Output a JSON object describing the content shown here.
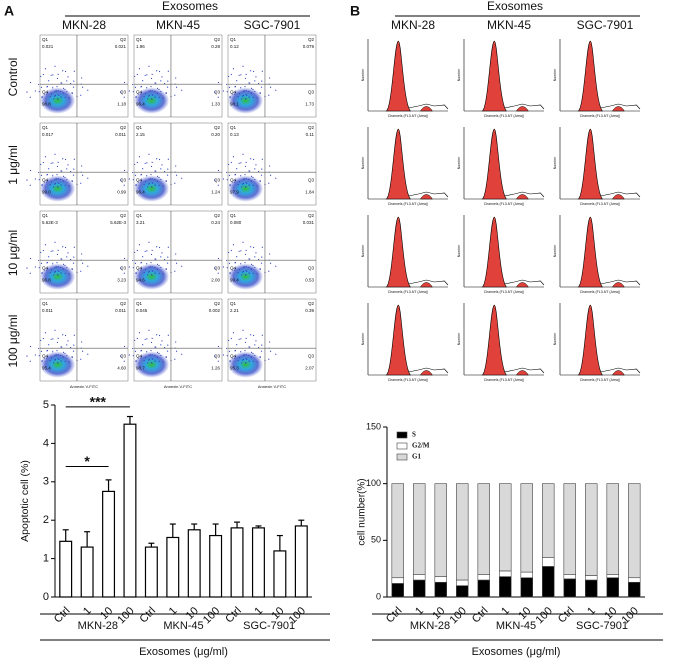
{
  "panel_a": {
    "letter": "A",
    "header": "Exosomes",
    "columns": [
      "MKN-28",
      "MKN-45",
      "SGC-7901"
    ],
    "rows": [
      "Control",
      "1 μg/ml",
      "10 μg/ml",
      "100 μg/ml"
    ],
    "quadrants": [
      "Q1",
      "Q2",
      "Q3",
      "Q4"
    ],
    "x_axis_label": "Annexin V-FITC",
    "plots": [
      [
        [
          "0.021",
          "0.021",
          "1.18",
          "98.8"
        ],
        [
          "1.96",
          "0.28",
          "1.33",
          "96.4"
        ],
        [
          "0.12",
          "0.079",
          "1.73",
          "98.1"
        ]
      ],
      [
        [
          "0.017",
          "0.011",
          "0.99",
          "99.0"
        ],
        [
          "2.15",
          "0.20",
          "1.24",
          "96.4"
        ],
        [
          "0.13",
          "0.11",
          "1.84",
          "97.9"
        ]
      ],
      [
        [
          "5.62E-3",
          "5.62E-3",
          "3.23",
          "96.8"
        ],
        [
          "3.21",
          "0.24",
          "2.00",
          "94.6"
        ],
        [
          "0.080",
          "0.031",
          "0.53",
          "99.4"
        ]
      ],
      [
        [
          "0.011",
          "0.011",
          "4.60",
          "95.4"
        ],
        [
          "0.045",
          "0.002",
          "1.26",
          "98.7"
        ],
        [
          "2.21",
          "0.39",
          "2.07",
          "95.3"
        ]
      ]
    ]
  },
  "panel_b": {
    "letter": "B",
    "header": "Exosomes",
    "columns": [
      "MKN-28",
      "MKN-45",
      "SGC-7901"
    ],
    "x_axis_label": "Channels (FL3-NT (Area))",
    "y_axis_label": "Number"
  },
  "chart_data": [
    {
      "type": "bar",
      "ylabel": "Apoptotic cell (%)",
      "xlabel": "Exosomes (μg/ml)",
      "categories": [
        "Ctrl",
        "1",
        "10",
        "100",
        "Ctrl",
        "1",
        "10",
        "100",
        "Ctrl",
        "1",
        "10",
        "100"
      ],
      "groups": [
        "MKN-28",
        "MKN-45",
        "SGC-7901"
      ],
      "values": [
        1.45,
        1.3,
        2.75,
        4.5,
        1.3,
        1.55,
        1.75,
        1.6,
        1.8,
        1.8,
        1.2,
        1.85
      ],
      "errors": [
        0.3,
        0.4,
        0.3,
        0.2,
        0.1,
        0.35,
        0.15,
        0.3,
        0.15,
        0.05,
        0.4,
        0.15
      ],
      "color": "#ffffff",
      "annotations": [
        "*",
        "***"
      ],
      "ylim": [
        0,
        5
      ],
      "yticks": [
        0,
        1,
        2,
        3,
        4,
        5
      ]
    },
    {
      "type": "stacked_bar",
      "ylabel": "cell number(%)",
      "xlabel": "Exosomes (μg/ml)",
      "categories": [
        "Ctrl",
        "1",
        "10",
        "100",
        "Ctrl",
        "1",
        "10",
        "100",
        "Ctrl",
        "1",
        "10",
        "100"
      ],
      "groups": [
        "MKN-28",
        "MKN-45",
        "SGC-7901"
      ],
      "series": [
        {
          "name": "S",
          "color": "#000000",
          "values": [
            12,
            15,
            13,
            10,
            15,
            18,
            17,
            27,
            16,
            15,
            17,
            13
          ]
        },
        {
          "name": "G2/M",
          "color": "#ffffff",
          "values": [
            5,
            5,
            5,
            5,
            5,
            5,
            5,
            8,
            4,
            4,
            3,
            4
          ]
        },
        {
          "name": "G1",
          "color": "#d9d9d9",
          "values": [
            83,
            80,
            82,
            85,
            80,
            77,
            78,
            65,
            80,
            81,
            80,
            83
          ]
        }
      ],
      "ylim": [
        0,
        150
      ],
      "yticks": [
        0,
        50,
        100,
        150
      ],
      "legend": "upper left"
    }
  ]
}
